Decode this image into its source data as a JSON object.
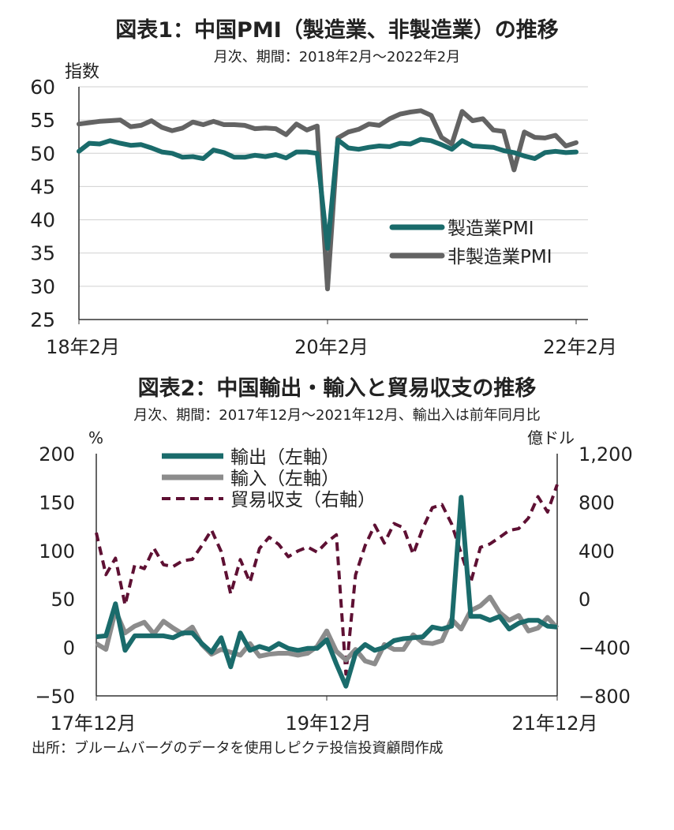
{
  "source": "出所：ブルームバーグのデータを使用しピクテ投信投資顧問作成",
  "chart_data": [
    {
      "type": "line",
      "title": "図表1：中国PMI（製造業、非製造業）の推移",
      "subtitle": "月次、期間：2018年2月～2022年2月",
      "ylabel": "指数",
      "ylim": [
        25,
        60
      ],
      "yticks": [
        60,
        55,
        50,
        45,
        40,
        35,
        30,
        25
      ],
      "x_tick_labels": [
        "18年2月",
        "20年2月",
        "22年2月"
      ],
      "grid": true,
      "legend_position": "right-center",
      "colors": {
        "manufacturing": "#1a6b6b",
        "non_manufacturing": "#636363"
      },
      "x": [
        "2018-02",
        "2018-03",
        "2018-04",
        "2018-05",
        "2018-06",
        "2018-07",
        "2018-08",
        "2018-09",
        "2018-10",
        "2018-11",
        "2018-12",
        "2019-01",
        "2019-02",
        "2019-03",
        "2019-04",
        "2019-05",
        "2019-06",
        "2019-07",
        "2019-08",
        "2019-09",
        "2019-10",
        "2019-11",
        "2019-12",
        "2020-01",
        "2020-02",
        "2020-03",
        "2020-04",
        "2020-05",
        "2020-06",
        "2020-07",
        "2020-08",
        "2020-09",
        "2020-10",
        "2020-11",
        "2020-12",
        "2021-01",
        "2021-02",
        "2021-03",
        "2021-04",
        "2021-05",
        "2021-06",
        "2021-07",
        "2021-08",
        "2021-09",
        "2021-10",
        "2021-11",
        "2021-12",
        "2022-01",
        "2022-02"
      ],
      "series": [
        {
          "name": "製造業PMI",
          "values": [
            50.3,
            51.5,
            51.4,
            51.9,
            51.5,
            51.2,
            51.3,
            50.8,
            50.2,
            50.0,
            49.4,
            49.5,
            49.2,
            50.5,
            50.1,
            49.4,
            49.4,
            49.7,
            49.5,
            49.8,
            49.3,
            50.2,
            50.2,
            50.0,
            35.7,
            52.0,
            50.8,
            50.6,
            50.9,
            51.1,
            51.0,
            51.5,
            51.4,
            52.1,
            51.9,
            51.3,
            50.6,
            51.9,
            51.1,
            51.0,
            50.9,
            50.4,
            50.1,
            49.6,
            49.2,
            50.1,
            50.3,
            50.1,
            50.2
          ]
        },
        {
          "name": "非製造業PMI",
          "values": [
            54.4,
            54.6,
            54.8,
            54.9,
            55.0,
            54.0,
            54.2,
            54.9,
            53.9,
            53.4,
            53.8,
            54.7,
            54.3,
            54.8,
            54.3,
            54.3,
            54.2,
            53.7,
            53.8,
            53.7,
            52.8,
            54.4,
            53.5,
            54.1,
            29.6,
            52.3,
            53.2,
            53.6,
            54.4,
            54.2,
            55.2,
            55.9,
            56.2,
            56.4,
            55.7,
            52.4,
            51.4,
            56.3,
            54.9,
            55.2,
            53.5,
            53.3,
            47.5,
            53.2,
            52.4,
            52.3,
            52.7,
            51.1,
            51.6
          ]
        }
      ]
    },
    {
      "type": "line",
      "title": "図表2：中国輸出・輸入と貿易収支の推移",
      "subtitle": "月次、期間：2017年12月～2021年12月、輸出入は前年同月比",
      "ylabel_left": "%",
      "ylabel_right": "億ドル",
      "ylim_left": [
        -50,
        200
      ],
      "ylim_right": [
        -800,
        1200
      ],
      "yticks_left": [
        "200",
        "150",
        "100",
        "50",
        "0",
        "−50"
      ],
      "yticks_right": [
        "1,200",
        "800",
        "400",
        "0",
        "−400",
        "−800"
      ],
      "x_tick_labels": [
        "17年12月",
        "19年12月",
        "21年12月"
      ],
      "grid": false,
      "legend_position": "top-left",
      "colors": {
        "exports": "#1a6b6b",
        "imports": "#8c8c8c",
        "balance": "#5e1033"
      },
      "x": [
        "2017-12",
        "2018-01",
        "2018-02",
        "2018-03",
        "2018-04",
        "2018-05",
        "2018-06",
        "2018-07",
        "2018-08",
        "2018-09",
        "2018-10",
        "2018-11",
        "2018-12",
        "2019-01",
        "2019-02",
        "2019-03",
        "2019-04",
        "2019-05",
        "2019-06",
        "2019-07",
        "2019-08",
        "2019-09",
        "2019-10",
        "2019-11",
        "2019-12",
        "2020-01",
        "2020-02",
        "2020-03",
        "2020-04",
        "2020-05",
        "2020-06",
        "2020-07",
        "2020-08",
        "2020-09",
        "2020-10",
        "2020-11",
        "2020-12",
        "2021-01",
        "2021-02",
        "2021-03",
        "2021-04",
        "2021-05",
        "2021-06",
        "2021-07",
        "2021-08",
        "2021-09",
        "2021-10",
        "2021-11",
        "2021-12"
      ],
      "series": [
        {
          "name": "輸出（左軸）",
          "axis": "left",
          "style": "solid",
          "values": [
            11,
            12,
            45,
            -3,
            12,
            12,
            12,
            12,
            10,
            15,
            15,
            4,
            -5,
            10,
            -20,
            15,
            -3,
            1,
            -2,
            4,
            -1,
            -3,
            -1,
            -1,
            8,
            -17,
            -40,
            -6,
            3,
            -3,
            0,
            7,
            9,
            10,
            11,
            21,
            19,
            22,
            155,
            32,
            32,
            28,
            32,
            19,
            25,
            28,
            28,
            22,
            21
          ]
        },
        {
          "name": "輸入（左軸）",
          "axis": "left",
          "style": "solid",
          "values": [
            4,
            -2,
            38,
            15,
            22,
            26,
            14,
            27,
            20,
            14,
            21,
            3,
            -7,
            -2,
            -5,
            -8,
            4,
            -9,
            -7,
            -6,
            -6,
            -8,
            -6,
            1,
            17,
            -4,
            -13,
            -2,
            -14,
            -17,
            3,
            -2,
            -2,
            13,
            5,
            4,
            7,
            29,
            19,
            38,
            43,
            52,
            36,
            28,
            33,
            17,
            20,
            31,
            20
          ]
        },
        {
          "name": "貿易収支（右軸）",
          "axis": "right",
          "style": "dashed",
          "values": [
            547,
            201,
            337,
            -50,
            281,
            250,
            419,
            283,
            268,
            316,
            327,
            442,
            570,
            392,
            42,
            325,
            138,
            417,
            510,
            450,
            349,
            396,
            429,
            387,
            469,
            530,
            -620,
            199,
            442,
            610,
            461,
            623,
            588,
            370,
            584,
            754,
            780,
            620,
            377,
            138,
            426,
            455,
            509,
            566,
            582,
            668,
            845,
            718,
            945
          ]
        }
      ]
    }
  ]
}
